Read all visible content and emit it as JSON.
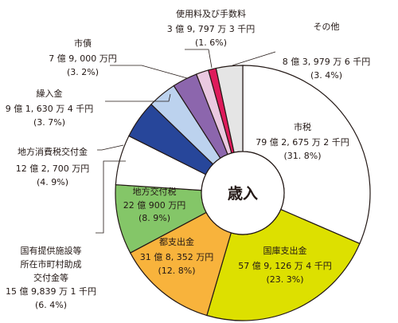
{
  "chart_data": {
    "type": "pie",
    "style": "donut",
    "center_label": "歳入",
    "slices": [
      {
        "name": "市税",
        "amount": "79 億 2, 675 万 2 千円",
        "pct_label": "(31. 8%)",
        "value": 31.8,
        "color": "#ffffff"
      },
      {
        "name": "国庫支出金",
        "amount": "57 億 9, 126 万 4 千円",
        "pct_label": "(23. 3%)",
        "value": 23.3,
        "color": "#dde000"
      },
      {
        "name": "都支出金",
        "amount": "31 億 8, 352 万円",
        "pct_label": "(12. 8%)",
        "value": 12.8,
        "color": "#f8b33c"
      },
      {
        "name": "地方交付税",
        "amount": "22 億 900 万円",
        "pct_label": "(8. 9%)",
        "value": 8.9,
        "color": "#84c668"
      },
      {
        "name": "国有提供施設等所在市町村助成交付金等",
        "name_lines": [
          "国有提供施設等",
          "所在市町村助成",
          "交付金等"
        ],
        "amount": "15 億 9,839 万 1 千円",
        "pct_label": "(6. 4%)",
        "value": 6.4,
        "color": "#ffffff"
      },
      {
        "name": "地方消費税交付金",
        "amount": "12 億 2, 700 万円",
        "pct_label": "(4. 9%)",
        "value": 4.9,
        "color": "#27469a"
      },
      {
        "name": "繰入金",
        "amount": "9 億 1, 630 万 4 千円",
        "pct_label": "(3. 7%)",
        "value": 3.7,
        "color": "#bcd2ee"
      },
      {
        "name": "市債",
        "amount": "7 億 9, 000 万円",
        "pct_label": "(3. 2%)",
        "value": 3.2,
        "color": "#8c66ad"
      },
      {
        "name": "使用料及び手数料",
        "amount": "3 億 9, 797 万 3 千円",
        "pct_label": "(1. 6%)",
        "value": 1.6,
        "color": "#eac9e0"
      },
      {
        "name": "",
        "amount": "",
        "pct_label": "",
        "value": 1.0,
        "color": "#de1a5b"
      },
      {
        "name": "その他",
        "amount": "8 億 3, 979 万 6 千円",
        "pct_label": "(3. 4%)",
        "value": 3.4,
        "color": "#e5e5e5"
      }
    ]
  }
}
